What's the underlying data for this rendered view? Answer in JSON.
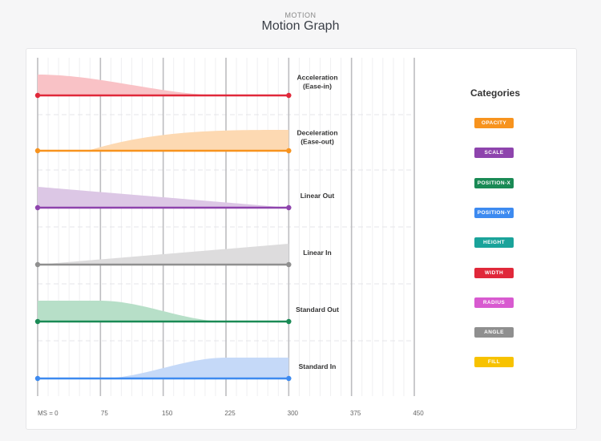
{
  "header": {
    "eyebrow": "MOTION",
    "title": "Motion Graph"
  },
  "legend": {
    "title": "Categories",
    "items": [
      {
        "label": "OPACITY",
        "color": "#f7931e"
      },
      {
        "label": "SCALE",
        "color": "#8e44ad"
      },
      {
        "label": "POSITION-X",
        "color": "#1a8a55"
      },
      {
        "label": "POSITION-Y",
        "color": "#3d8af0"
      },
      {
        "label": "HEIGHT",
        "color": "#1aa39a"
      },
      {
        "label": "WIDTH",
        "color": "#e0283a"
      },
      {
        "label": "RADIUS",
        "color": "#d85ad0"
      },
      {
        "label": "ANGLE",
        "color": "#8f8f8f"
      },
      {
        "label": "FILL",
        "color": "#f7c200"
      }
    ]
  },
  "chart_data": {
    "type": "area",
    "title": "Motion Graph",
    "xlabel": "ms",
    "x_ticks": [
      0,
      75,
      150,
      225,
      300,
      375,
      450
    ],
    "x_tick_labels": [
      "MS = 0",
      "75",
      "150",
      "225",
      "300",
      "375",
      "450"
    ],
    "xlim": [
      0,
      450
    ],
    "curve_range_ms": [
      0,
      300
    ],
    "series": [
      {
        "name": "Acceleration (Ease-in)",
        "label_lines": [
          "Acceleration",
          "(Ease-in)"
        ],
        "color": "#e0283a",
        "fill": "#f9c2c6",
        "direction": "out",
        "easing": "ease-in"
      },
      {
        "name": "Deceleration (Ease-out)",
        "label_lines": [
          "Deceleration",
          "(Ease-out)"
        ],
        "color": "#f7931e",
        "fill": "#fdd9b2",
        "direction": "in",
        "easing": "ease-out"
      },
      {
        "name": "Linear Out",
        "label_lines": [
          "Linear Out"
        ],
        "color": "#8e44ad",
        "fill": "#dcc7e5",
        "direction": "out",
        "easing": "linear"
      },
      {
        "name": "Linear In",
        "label_lines": [
          "Linear In"
        ],
        "color": "#8f8f8f",
        "fill": "#dddcdd",
        "direction": "in",
        "easing": "linear"
      },
      {
        "name": "Standard Out",
        "label_lines": [
          "Standard Out"
        ],
        "color": "#1a8a55",
        "fill": "#b7dfc8",
        "direction": "out",
        "easing": "standard"
      },
      {
        "name": "Standard In",
        "label_lines": [
          "Standard In"
        ],
        "color": "#3d8af0",
        "fill": "#c5d9f8",
        "direction": "in",
        "easing": "standard"
      }
    ]
  }
}
